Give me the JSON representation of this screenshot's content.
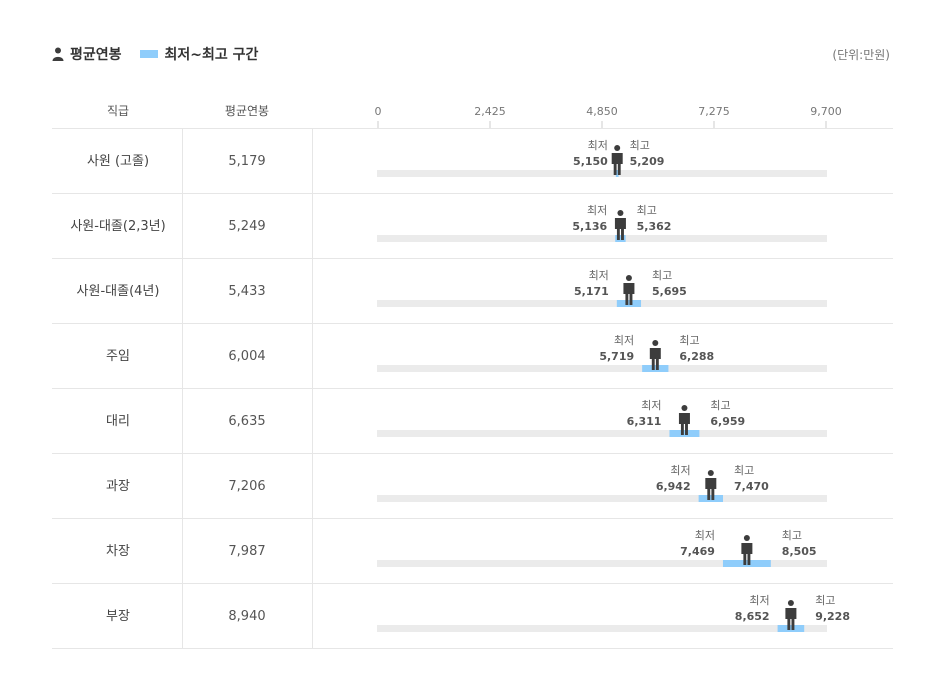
{
  "legend": {
    "avg_label": "평균연봉",
    "range_label": "최저~최고 구간"
  },
  "unit_label": "(단위:만원)",
  "columns": {
    "position": "직급",
    "avg": "평균연봉"
  },
  "labels": {
    "min": "최저",
    "max": "최고"
  },
  "colors": {
    "range": "#8fcdfb",
    "track": "#ebebeb",
    "person": "#3d3d3d",
    "grid": "#e6e6e6"
  },
  "chart_data": {
    "type": "bar",
    "orientation": "horizontal-range",
    "xlim": [
      0,
      9700
    ],
    "ticks": [
      0,
      2425,
      4850,
      7275,
      9700
    ],
    "tick_labels": [
      "0",
      "2,425",
      "4,850",
      "7,275",
      "9,700"
    ],
    "categories": [
      "사원 (고졸)",
      "사원-대졸(2,3년)",
      "사원-대졸(4년)",
      "주임",
      "대리",
      "과장",
      "차장",
      "부장"
    ],
    "avg": [
      5179,
      5249,
      5433,
      6004,
      6635,
      7206,
      7987,
      8940
    ],
    "avg_labels": [
      "5,179",
      "5,249",
      "5,433",
      "6,004",
      "6,635",
      "7,206",
      "7,987",
      "8,940"
    ],
    "min": [
      5150,
      5136,
      5171,
      5719,
      6311,
      6942,
      7469,
      8652
    ],
    "min_labels": [
      "5,150",
      "5,136",
      "5,171",
      "5,719",
      "6,311",
      "6,942",
      "7,469",
      "8,652"
    ],
    "max": [
      5209,
      5362,
      5695,
      6288,
      6959,
      7470,
      8505,
      9228
    ],
    "max_labels": [
      "5,209",
      "5,362",
      "5,695",
      "6,288",
      "6,959",
      "7,470",
      "8,505",
      "9,228"
    ]
  }
}
